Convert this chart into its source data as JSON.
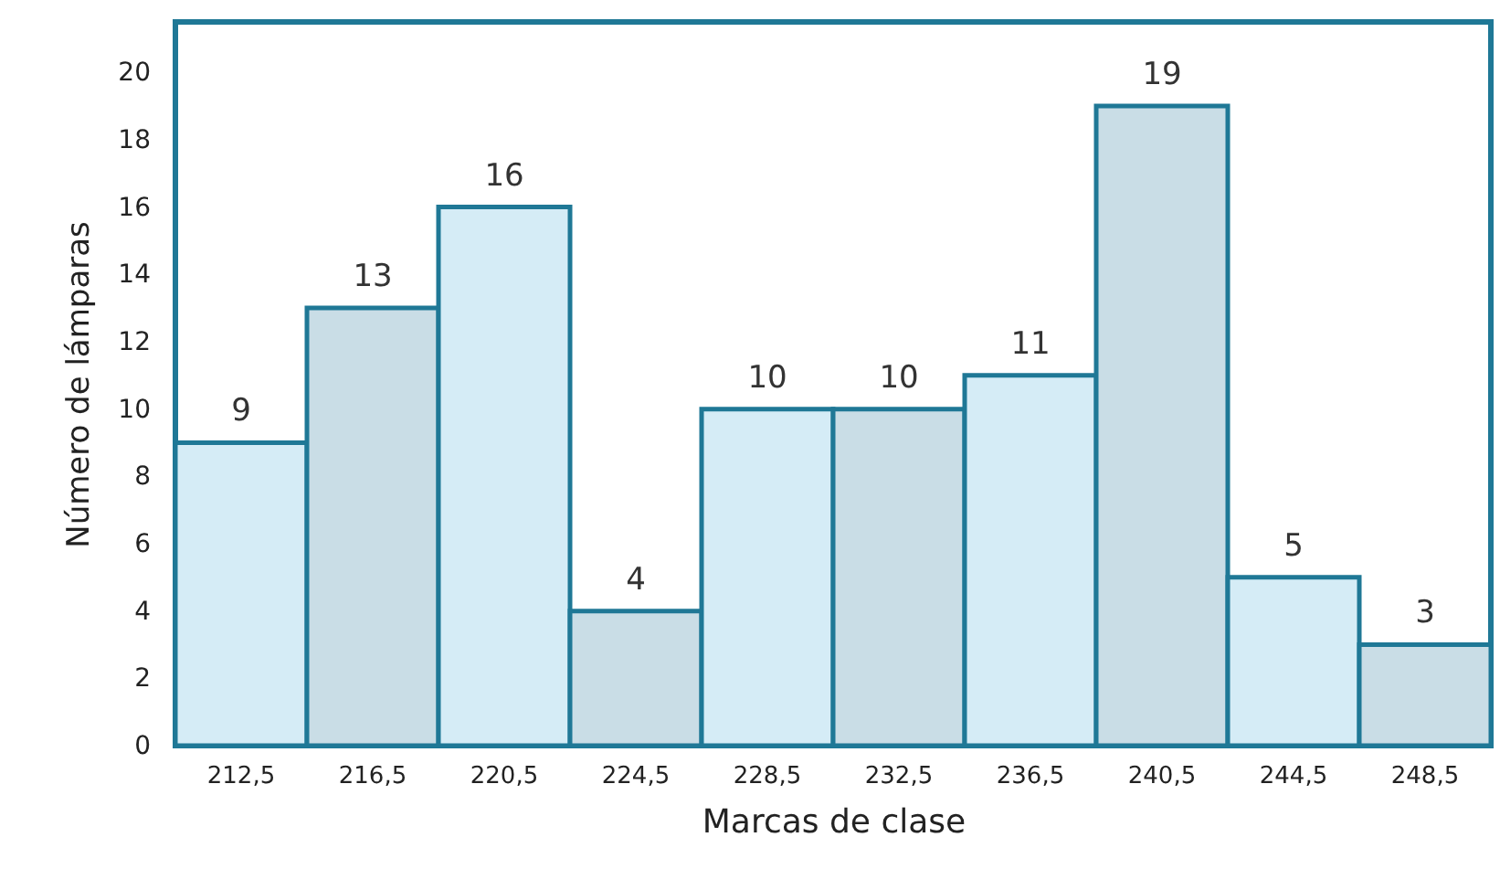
{
  "chart_data": {
    "type": "bar",
    "xlabel": "Marcas de clase",
    "ylabel": "Número de lámparas",
    "categories": [
      "212,5",
      "216,5",
      "220,5",
      "224,5",
      "228,5",
      "232,5",
      "236,5",
      "240,5",
      "244,5",
      "248,5"
    ],
    "values": [
      9,
      13,
      16,
      4,
      10,
      10,
      11,
      19,
      5,
      3
    ],
    "colors": [
      "#d5ecf6",
      "#c9dde6",
      "#d5ecf6",
      "#c9dde6",
      "#d5ecf6",
      "#c9dde6",
      "#d5ecf6",
      "#c9dde6",
      "#d5ecf6",
      "#c9dde6"
    ],
    "ylim": [
      0,
      21.5
    ],
    "yticks": [
      0,
      2,
      4,
      6,
      8,
      10,
      12,
      14,
      16,
      18,
      20
    ],
    "data_labels": true,
    "grid": false
  }
}
